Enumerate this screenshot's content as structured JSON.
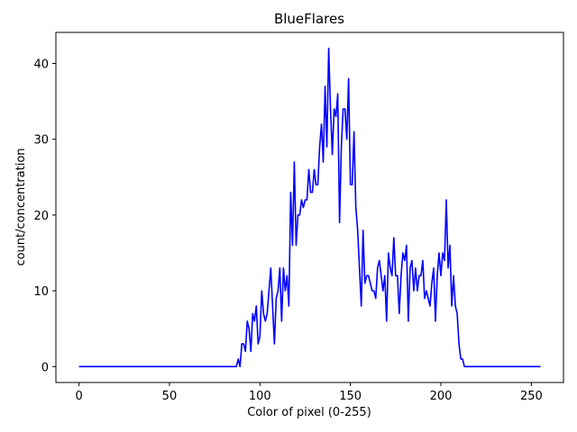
{
  "chart_data": {
    "type": "line",
    "title": "BlueFlares",
    "xlabel": "Color of pixel (0-255)",
    "ylabel": "count/concentration",
    "xlim": [
      -12.75,
      267.75
    ],
    "ylim": [
      -2.1,
      44.1
    ],
    "xticks": [
      0,
      50,
      100,
      150,
      200,
      250
    ],
    "yticks": [
      0,
      10,
      20,
      30,
      40
    ],
    "grid": false,
    "legend": "none",
    "series": [
      {
        "color": "#0000ff",
        "x": [
          0,
          87,
          88,
          89,
          90,
          91,
          92,
          93,
          94,
          95,
          96,
          97,
          98,
          99,
          100,
          101,
          102,
          103,
          104,
          105,
          106,
          107,
          108,
          109,
          110,
          111,
          112,
          113,
          114,
          115,
          116,
          117,
          118,
          119,
          120,
          121,
          122,
          123,
          124,
          125,
          126,
          127,
          128,
          129,
          130,
          131,
          132,
          133,
          134,
          135,
          136,
          137,
          138,
          139,
          140,
          141,
          142,
          143,
          144,
          145,
          146,
          147,
          148,
          149,
          150,
          151,
          152,
          153,
          154,
          155,
          156,
          157,
          158,
          159,
          160,
          161,
          162,
          163,
          164,
          165,
          166,
          167,
          168,
          169,
          170,
          171,
          172,
          173,
          174,
          175,
          176,
          177,
          178,
          179,
          180,
          181,
          182,
          183,
          184,
          185,
          186,
          187,
          188,
          189,
          190,
          191,
          192,
          193,
          194,
          195,
          196,
          197,
          198,
          199,
          200,
          201,
          202,
          203,
          204,
          205,
          206,
          207,
          208,
          209,
          210,
          211,
          212,
          213,
          214,
          255
        ],
        "y": [
          0,
          0,
          1,
          0,
          3,
          3,
          2,
          6,
          5,
          2,
          7,
          6,
          8,
          3,
          4,
          10,
          7,
          6,
          7,
          10,
          13,
          8,
          3,
          9,
          10,
          13,
          6,
          13,
          10,
          12,
          8,
          23,
          16,
          27,
          16,
          20,
          20,
          22,
          21,
          22,
          22,
          26,
          23,
          23,
          26,
          24,
          24,
          29,
          32,
          27,
          37,
          29,
          42,
          34,
          28,
          34,
          33,
          36,
          19,
          29,
          34,
          34,
          30,
          38,
          24,
          24,
          31,
          21,
          18,
          13,
          8,
          18,
          11,
          12,
          12,
          11,
          10,
          10,
          9,
          13,
          14,
          12,
          10,
          12,
          6,
          15,
          13,
          12,
          17,
          12,
          12,
          7,
          12,
          15,
          14,
          16,
          6,
          13,
          14,
          10,
          13,
          10,
          12,
          12,
          14,
          9,
          10,
          9,
          8,
          11,
          13,
          6,
          12,
          15,
          12,
          15,
          14,
          22,
          13,
          16,
          8,
          12,
          8,
          7,
          3,
          1,
          1,
          0,
          0,
          0
        ]
      }
    ]
  }
}
